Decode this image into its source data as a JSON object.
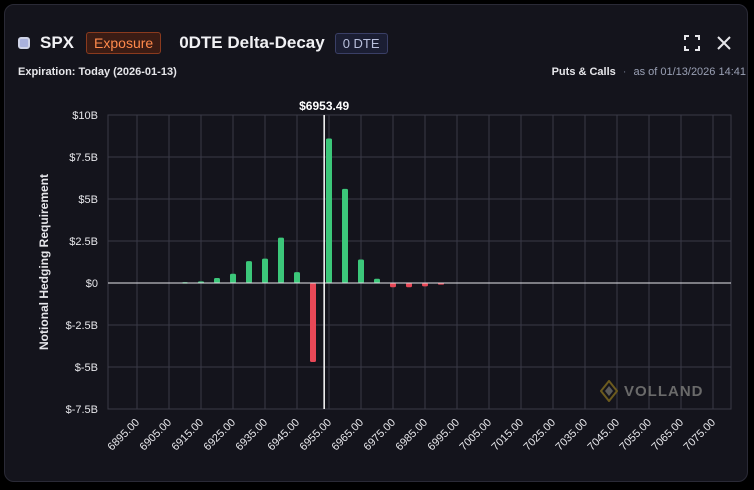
{
  "header": {
    "symbol": "SPX",
    "exposure_label": "Exposure",
    "title": "0DTE Delta-Decay",
    "dte_badge": "0 DTE",
    "expiration": "Expiration: Today (2026-01-13)",
    "puts_calls": "Puts & Calls",
    "as_of": "as of 01/13/2026 14:41"
  },
  "icons": {
    "fullscreen": "fullscreen-icon",
    "close": "close-icon",
    "symbol_box": "symbol-square-icon"
  },
  "watermark": {
    "text": "VOLLAND"
  },
  "colors": {
    "positive": "#3cc77a",
    "negative": "#e84857",
    "spot_line": "#ffffff",
    "grid": "#3a3a46",
    "background": "#14141c"
  },
  "chart_data": {
    "type": "bar",
    "ylabel": "Notional Hedging Requirement",
    "xlabel": "",
    "spot_label": "$6953.49",
    "spot": 6953.49,
    "ylim": [
      -7.5,
      10
    ],
    "yticks": [
      10,
      7.5,
      5,
      2.5,
      0,
      -2.5,
      -5,
      -7.5
    ],
    "ytick_labels": [
      "$10B",
      "$7.5B",
      "$5B",
      "$2.5B",
      "$0",
      "$-2.5B",
      "$-5B",
      "$-7.5B"
    ],
    "xticks": [
      6895,
      6905,
      6915,
      6925,
      6935,
      6945,
      6955,
      6965,
      6975,
      6985,
      6995,
      7005,
      7015,
      7025,
      7035,
      7045,
      7055,
      7065,
      7075
    ],
    "xtick_labels": [
      "6895.00",
      "6905.00",
      "6915.00",
      "6925.00",
      "6935.00",
      "6945.00",
      "6955.00",
      "6965.00",
      "6975.00",
      "6985.00",
      "6995.00",
      "7005.00",
      "7015.00",
      "7025.00",
      "7035.00",
      "7045.00",
      "7055.00",
      "7065.00",
      "7075.00"
    ],
    "bars": [
      {
        "x": 6910,
        "y": 0.05
      },
      {
        "x": 6915,
        "y": 0.1
      },
      {
        "x": 6920,
        "y": 0.3
      },
      {
        "x": 6925,
        "y": 0.55
      },
      {
        "x": 6930,
        "y": 1.3
      },
      {
        "x": 6935,
        "y": 1.45
      },
      {
        "x": 6940,
        "y": 2.7
      },
      {
        "x": 6945,
        "y": 0.65
      },
      {
        "x": 6950,
        "y": -4.7
      },
      {
        "x": 6955,
        "y": 8.6
      },
      {
        "x": 6960,
        "y": 5.6
      },
      {
        "x": 6965,
        "y": 1.4
      },
      {
        "x": 6970,
        "y": 0.25
      },
      {
        "x": 6975,
        "y": -0.25
      },
      {
        "x": 6980,
        "y": -0.25
      },
      {
        "x": 6985,
        "y": -0.2
      },
      {
        "x": 6990,
        "y": -0.1
      }
    ],
    "grid": true,
    "legend": "none"
  }
}
